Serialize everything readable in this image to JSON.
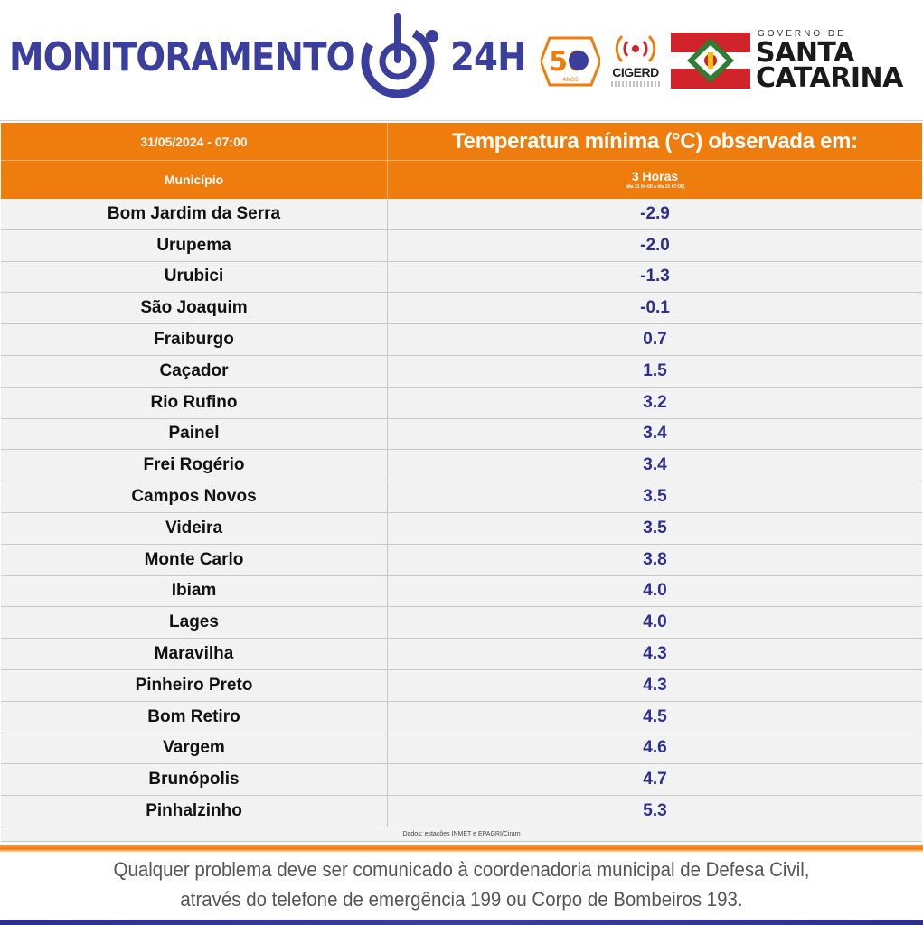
{
  "header": {
    "brand_left": "MONITORAMENTO",
    "brand_right": "24H",
    "logo50_text": "50",
    "logo50_sub": "ANOS",
    "cigerd_label": "CIGERD",
    "gov_small": "GOVERNO DE",
    "gov_line1": "SANTA",
    "gov_line2": "CATARINA",
    "colors": {
      "brand": "#3a3f9e",
      "orange": "#ef7d0d",
      "flag_red": "#d1232a",
      "flag_green": "#2e7d32"
    }
  },
  "table": {
    "datetime": "31/05/2024 - 07:00",
    "title": "Temperatura mínima (°C) observada em:",
    "col_municipio": "Município",
    "col_hours": "3 Horas",
    "col_hours_sub": "(dia 31 04:00 a dia 31 07:00)",
    "rows": [
      {
        "municipio": "Bom Jardim da Serra",
        "temp": "-2.9"
      },
      {
        "municipio": "Urupema",
        "temp": "-2.0"
      },
      {
        "municipio": "Urubici",
        "temp": "-1.3"
      },
      {
        "municipio": "São Joaquim",
        "temp": "-0.1"
      },
      {
        "municipio": "Fraiburgo",
        "temp": "0.7"
      },
      {
        "municipio": "Caçador",
        "temp": "1.5"
      },
      {
        "municipio": "Rio Rufino",
        "temp": "3.2"
      },
      {
        "municipio": "Painel",
        "temp": "3.4"
      },
      {
        "municipio": "Frei Rogério",
        "temp": "3.4"
      },
      {
        "municipio": "Campos Novos",
        "temp": "3.5"
      },
      {
        "municipio": "Videira",
        "temp": "3.5"
      },
      {
        "municipio": "Monte Carlo",
        "temp": "3.8"
      },
      {
        "municipio": "Ibiam",
        "temp": "4.0"
      },
      {
        "municipio": "Lages",
        "temp": "4.0"
      },
      {
        "municipio": "Maravilha",
        "temp": "4.3"
      },
      {
        "municipio": "Pinheiro Preto",
        "temp": "4.3"
      },
      {
        "municipio": "Bom Retiro",
        "temp": "4.5"
      },
      {
        "municipio": "Vargem",
        "temp": "4.6"
      },
      {
        "municipio": "Brunópolis",
        "temp": "4.7"
      },
      {
        "municipio": "Pinhalzinho",
        "temp": "5.3"
      }
    ],
    "source": "Dados: estações INMET e EPAGRI/Ciram"
  },
  "footer": {
    "line1": "Qualquer problema deve ser comunicado à coordenadoria municipal de Defesa Civil,",
    "line2": "através do telefone de emergência 199 ou Corpo de Bombeiros 193."
  }
}
